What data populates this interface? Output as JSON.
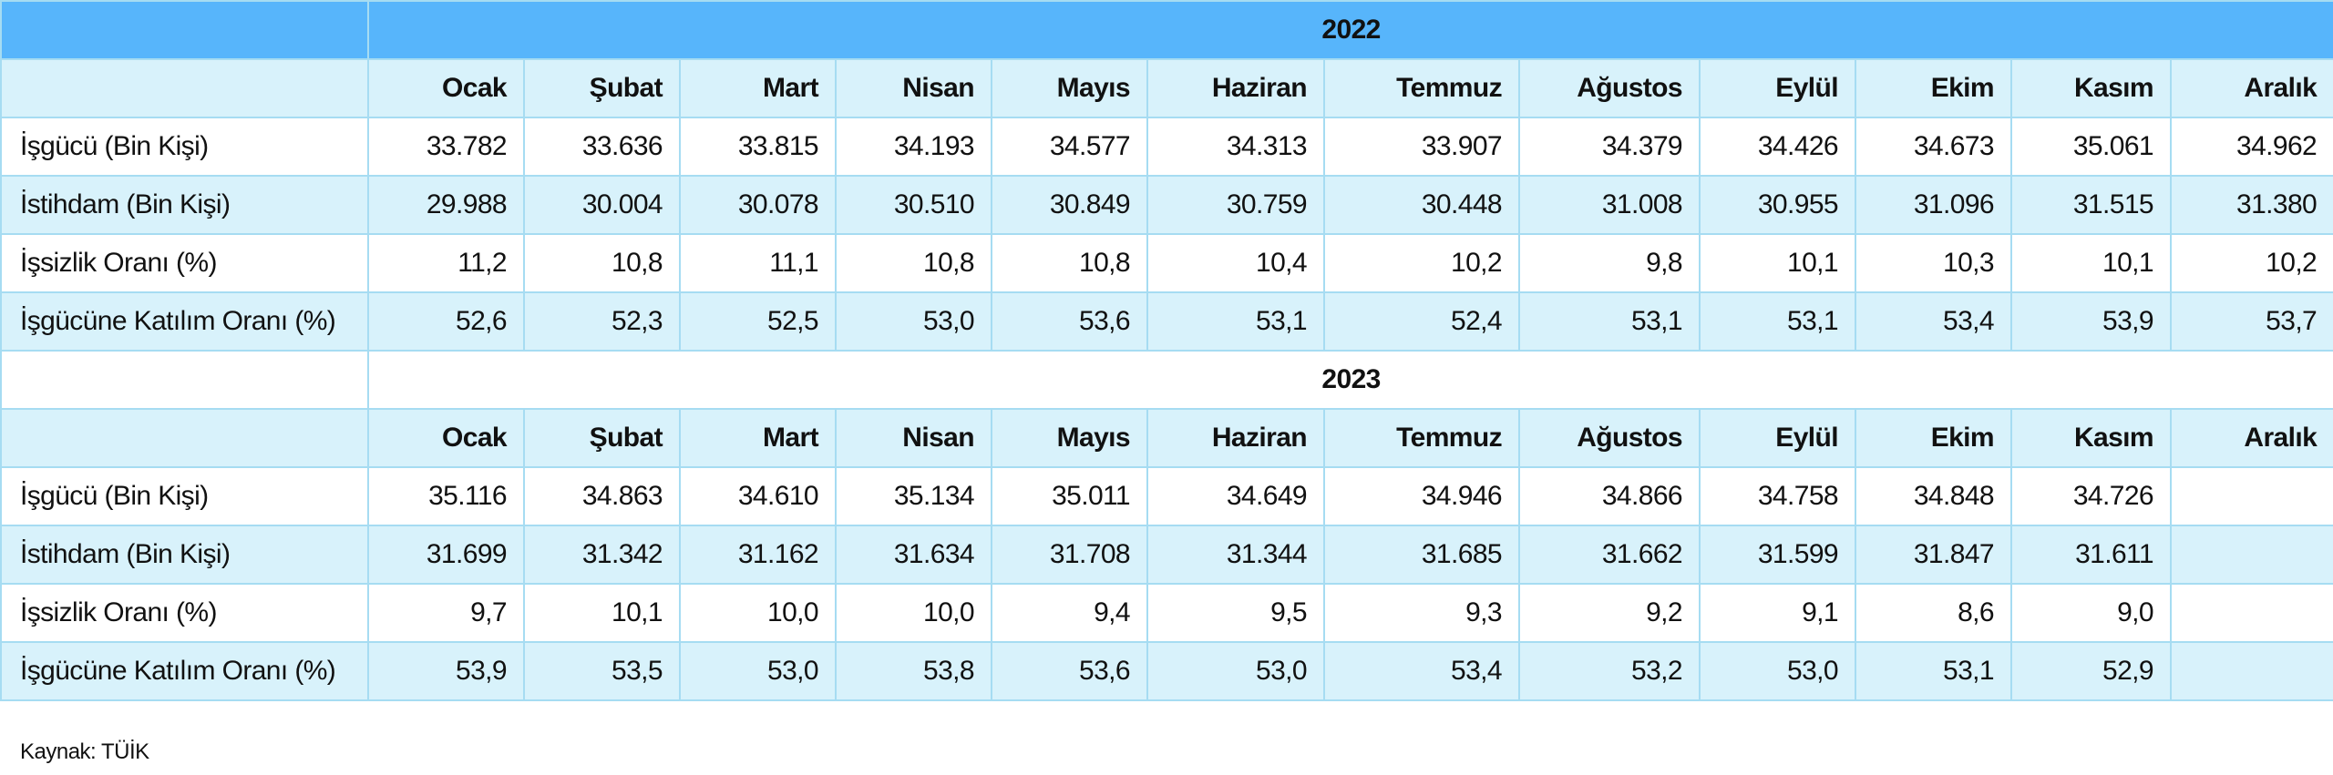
{
  "tables": [
    {
      "year": "2022",
      "months": [
        "Ocak",
        "Şubat",
        "Mart",
        "Nisan",
        "Mayıs",
        "Haziran",
        "Temmuz",
        "Ağustos",
        "Eylül",
        "Ekim",
        "Kasım",
        "Aralık"
      ],
      "rows": [
        {
          "label": "İşgücü (Bin Kişi)",
          "values": [
            "33.782",
            "33.636",
            "33.815",
            "34.193",
            "34.577",
            "34.313",
            "33.907",
            "34.379",
            "34.426",
            "34.673",
            "35.061",
            "34.962"
          ]
        },
        {
          "label": "İstihdam (Bin Kişi)",
          "values": [
            "29.988",
            "30.004",
            "30.078",
            "30.510",
            "30.849",
            "30.759",
            "30.448",
            "31.008",
            "30.955",
            "31.096",
            "31.515",
            "31.380"
          ]
        },
        {
          "label": "İşsizlik Oranı (%)",
          "values": [
            "11,2",
            "10,8",
            "11,1",
            "10,8",
            "10,8",
            "10,4",
            "10,2",
            "9,8",
            "10,1",
            "10,3",
            "10,1",
            "10,2"
          ]
        },
        {
          "label": "İşgücüne Katılım Oranı (%)",
          "values": [
            "52,6",
            "52,3",
            "52,5",
            "53,0",
            "53,6",
            "53,1",
            "52,4",
            "53,1",
            "53,1",
            "53,4",
            "53,9",
            "53,7"
          ]
        }
      ]
    },
    {
      "year": "2023",
      "months": [
        "Ocak",
        "Şubat",
        "Mart",
        "Nisan",
        "Mayıs",
        "Haziran",
        "Temmuz",
        "Ağustos",
        "Eylül",
        "Ekim",
        "Kasım",
        "Aralık"
      ],
      "rows": [
        {
          "label": "İşgücü (Bin Kişi)",
          "values": [
            "35.116",
            "34.863",
            "34.610",
            "35.134",
            "35.011",
            "34.649",
            "34.946",
            "34.866",
            "34.758",
            "34.848",
            "34.726",
            null
          ]
        },
        {
          "label": "İstihdam (Bin Kişi)",
          "values": [
            "31.699",
            "31.342",
            "31.162",
            "31.634",
            "31.708",
            "31.344",
            "31.685",
            "31.662",
            "31.599",
            "31.847",
            "31.611",
            null
          ]
        },
        {
          "label": "İşsizlik Oranı (%)",
          "values": [
            "9,7",
            "10,1",
            "10,0",
            "10,0",
            "9,4",
            "9,5",
            "9,3",
            "9,2",
            "9,1",
            "8,6",
            "9,0",
            null
          ]
        },
        {
          "label": "İşgücüne Katılım Oranı (%)",
          "values": [
            "53,9",
            "53,5",
            "53,0",
            "53,8",
            "53,6",
            "53,0",
            "53,4",
            "53,2",
            "53,0",
            "53,1",
            "52,9",
            null
          ]
        }
      ]
    }
  ],
  "source": "Kaynak: TÜİK"
}
